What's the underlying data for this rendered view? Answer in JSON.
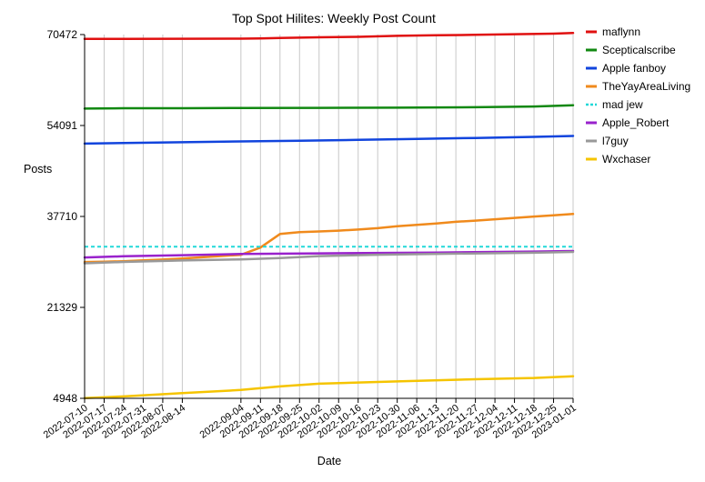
{
  "chart_data": {
    "type": "line",
    "title": "Top Spot Hilites: Weekly Post Count",
    "xlabel": "Date",
    "ylabel": "Posts",
    "y_ticks": [
      4948,
      21329,
      37710,
      54091,
      70472
    ],
    "ylim": [
      4948,
      70472
    ],
    "x_ticks": [
      "2022-07-10",
      "2022-07-17",
      "2022-07-24",
      "2022-07-31",
      "2022-08-07",
      "2022-08-14",
      "2022-09-04",
      "2022-09-11",
      "2022-09-18",
      "2022-09-25",
      "2022-10-02",
      "2022-10-09",
      "2022-10-16",
      "2022-10-23",
      "2022-10-30",
      "2022-11-06",
      "2022-11-13",
      "2022-11-20",
      "2022-11-27",
      "2022-12-04",
      "2022-12-11",
      "2022-12-18",
      "2022-12-25",
      "2023-01-01"
    ],
    "grid": "vertical",
    "legend_position": "right",
    "series": [
      {
        "name": "maflynn",
        "color": "#e01010",
        "dash": false,
        "x": [
          "2022-07-10",
          "2022-07-24",
          "2022-08-14",
          "2022-09-04",
          "2022-09-11",
          "2022-09-18",
          "2022-10-02",
          "2022-10-16",
          "2022-10-30",
          "2022-11-13",
          "2022-11-27",
          "2022-12-11",
          "2022-12-25",
          "2023-01-01"
        ],
        "y": [
          69700,
          69710,
          69720,
          69740,
          69780,
          69860,
          69980,
          70070,
          70250,
          70340,
          70420,
          70540,
          70640,
          70750
        ]
      },
      {
        "name": "Scepticalscribe",
        "color": "#118811",
        "dash": false,
        "x": [
          "2022-07-10",
          "2022-07-24",
          "2022-08-14",
          "2022-09-04",
          "2022-10-02",
          "2022-10-30",
          "2022-11-27",
          "2022-12-18",
          "2023-01-01"
        ],
        "y": [
          57130,
          57200,
          57210,
          57260,
          57270,
          57300,
          57380,
          57520,
          57750
        ]
      },
      {
        "name": "Apple fanboy",
        "color": "#1144dd",
        "dash": false,
        "x": [
          "2022-07-10",
          "2022-07-24",
          "2022-08-14",
          "2022-09-04",
          "2022-09-25",
          "2022-10-16",
          "2022-11-06",
          "2022-11-27",
          "2022-12-18",
          "2023-01-01"
        ],
        "y": [
          50830,
          50930,
          51070,
          51220,
          51360,
          51510,
          51680,
          51850,
          52050,
          52210
        ]
      },
      {
        "name": "TheYayAreaLiving",
        "color": "#f08a1c",
        "dash": false,
        "x": [
          "2022-07-10",
          "2022-07-17",
          "2022-07-24",
          "2022-07-31",
          "2022-08-07",
          "2022-08-14",
          "2022-09-04",
          "2022-09-11",
          "2022-09-18",
          "2022-09-25",
          "2022-10-02",
          "2022-10-09",
          "2022-10-16",
          "2022-10-23",
          "2022-10-30",
          "2022-11-06",
          "2022-11-13",
          "2022-11-20",
          "2022-11-27",
          "2022-12-04",
          "2022-12-11",
          "2022-12-18",
          "2022-12-25",
          "2023-01-01"
        ],
        "y": [
          29500,
          29550,
          29650,
          29800,
          29950,
          30150,
          30800,
          32100,
          34550,
          34900,
          35000,
          35150,
          35350,
          35600,
          35950,
          36200,
          36450,
          36750,
          36950,
          37200,
          37450,
          37700,
          37900,
          38150
        ]
      },
      {
        "name": "mad jew",
        "color": "#22d8d8",
        "dash": true,
        "x": [
          "2022-07-10",
          "2023-01-01"
        ],
        "y": [
          32260,
          32260
        ]
      },
      {
        "name": "Apple_Robert",
        "color": "#9922cc",
        "dash": false,
        "x": [
          "2022-07-10",
          "2022-07-24",
          "2022-08-14",
          "2022-09-04",
          "2022-10-02",
          "2022-11-13",
          "2022-12-18",
          "2023-01-01"
        ],
        "y": [
          30330,
          30540,
          30730,
          30940,
          31060,
          31200,
          31380,
          31480
        ]
      },
      {
        "name": "l7guy",
        "color": "#999999",
        "dash": false,
        "x": [
          "2022-07-10",
          "2022-07-24",
          "2022-08-14",
          "2022-09-04",
          "2022-09-18",
          "2022-10-02",
          "2022-10-23",
          "2022-11-20",
          "2022-12-18",
          "2023-01-01"
        ],
        "y": [
          29280,
          29520,
          29780,
          29970,
          30230,
          30560,
          30810,
          31010,
          31170,
          31320
        ]
      },
      {
        "name": "Wxchaser",
        "color": "#f5c400",
        "dash": false,
        "x": [
          "2022-07-10",
          "2022-07-24",
          "2022-08-14",
          "2022-09-04",
          "2022-09-18",
          "2022-10-02",
          "2022-10-30",
          "2022-11-27",
          "2022-12-18",
          "2023-01-01"
        ],
        "y": [
          5000,
          5300,
          5900,
          6450,
          7100,
          7580,
          8000,
          8380,
          8620,
          8930
        ]
      }
    ]
  }
}
